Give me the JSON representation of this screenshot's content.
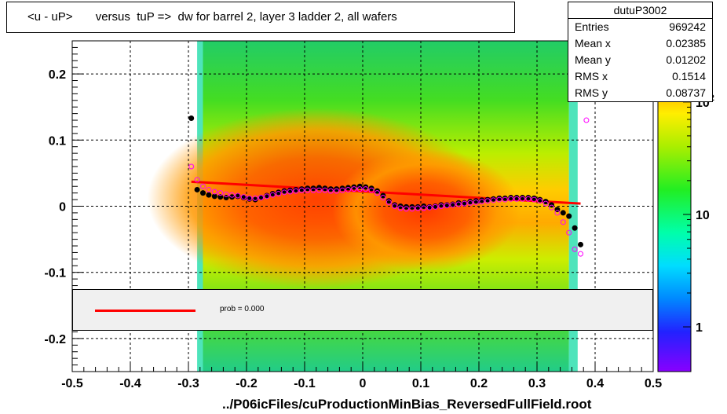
{
  "title": "<u - uP>       versus  tuP =>  dw for barrel 2, layer 3 ladder 2, all wafers",
  "footer": "../P06icFiles/cuProductionMinBias_ReversedFullField.root",
  "stats": {
    "name": "dutuP3002",
    "rows": [
      {
        "label": "Entries",
        "value": "969242"
      },
      {
        "label": "Mean x",
        "value": "0.02385"
      },
      {
        "label": "Mean y",
        "value": "0.01202"
      },
      {
        "label": "RMS x",
        "value": "0.1514"
      },
      {
        "label": "RMS y",
        "value": "0.08737"
      }
    ]
  },
  "legend": {
    "text": "prob = 0.000"
  },
  "colors": {
    "fit_line": "#ff0000",
    "profile_black": "#000000",
    "profile_magenta": "#ff00ff"
  },
  "chart_data": {
    "type": "heatmap",
    "xlim": [
      -0.5,
      0.5
    ],
    "ylim": [
      -0.25,
      0.25
    ],
    "x_ticks": [
      "-0.5",
      "-0.4",
      "-0.3",
      "-0.2",
      "-0.1",
      "0",
      "0.1",
      "0.2",
      "0.3",
      "0.4",
      "0.5"
    ],
    "x_tick_values": [
      -0.5,
      -0.4,
      -0.3,
      -0.2,
      -0.1,
      0,
      0.1,
      0.2,
      0.3,
      0.4,
      0.5
    ],
    "y_ticks": [
      "-0.2",
      "-0.1",
      "0",
      "0.1",
      "0.2"
    ],
    "y_tick_values": [
      -0.2,
      -0.1,
      0,
      0.1,
      0.2
    ],
    "z_scale": "log",
    "z_ticks": [
      "1",
      "10",
      "10^2"
    ],
    "z_tick_values": [
      1,
      10,
      100
    ],
    "grid": true,
    "fit_line": {
      "x": [
        -0.295,
        0.375
      ],
      "y": [
        0.037,
        0.004
      ]
    },
    "profile_black": {
      "x": [
        -0.295,
        -0.285,
        -0.275,
        -0.265,
        -0.255,
        -0.245,
        -0.235,
        -0.225,
        -0.215,
        -0.205,
        -0.195,
        -0.185,
        -0.175,
        -0.165,
        -0.155,
        -0.145,
        -0.135,
        -0.125,
        -0.115,
        -0.105,
        -0.095,
        -0.085,
        -0.075,
        -0.065,
        -0.055,
        -0.045,
        -0.035,
        -0.025,
        -0.015,
        -0.005,
        0.005,
        0.015,
        0.025,
        0.035,
        0.045,
        0.055,
        0.065,
        0.075,
        0.085,
        0.095,
        0.105,
        0.115,
        0.125,
        0.135,
        0.145,
        0.155,
        0.165,
        0.175,
        0.185,
        0.195,
        0.205,
        0.215,
        0.225,
        0.235,
        0.245,
        0.255,
        0.265,
        0.275,
        0.285,
        0.295,
        0.305,
        0.315,
        0.325,
        0.335,
        0.345,
        0.355,
        0.365,
        0.375
      ],
      "y": [
        0.133,
        0.025,
        0.02,
        0.017,
        0.015,
        0.014,
        0.013,
        0.014,
        0.015,
        0.013,
        0.011,
        0.01,
        0.013,
        0.016,
        0.019,
        0.021,
        0.023,
        0.024,
        0.025,
        0.026,
        0.027,
        0.027,
        0.028,
        0.027,
        0.026,
        0.026,
        0.027,
        0.028,
        0.029,
        0.03,
        0.029,
        0.027,
        0.023,
        0.016,
        0.008,
        0.002,
        0.0,
        -0.001,
        -0.001,
        -0.001,
        0.0,
        -0.001,
        0.0,
        0.002,
        0.002,
        0.003,
        0.005,
        0.005,
        0.007,
        0.008,
        0.009,
        0.01,
        0.011,
        0.012,
        0.012,
        0.013,
        0.013,
        0.013,
        0.013,
        0.012,
        0.01,
        0.007,
        0.002,
        -0.005,
        -0.01,
        -0.015,
        -0.033,
        -0.058
      ]
    },
    "profile_magenta": {
      "x": [
        -0.295,
        -0.285,
        -0.275,
        -0.265,
        -0.255,
        -0.245,
        -0.235,
        -0.225,
        -0.215,
        -0.205,
        -0.195,
        -0.185,
        -0.175,
        -0.165,
        -0.155,
        -0.145,
        -0.135,
        -0.125,
        -0.115,
        -0.105,
        -0.095,
        -0.085,
        -0.075,
        -0.065,
        -0.055,
        -0.045,
        -0.035,
        -0.025,
        -0.015,
        -0.005,
        0.005,
        0.015,
        0.025,
        0.035,
        0.045,
        0.055,
        0.065,
        0.075,
        0.085,
        0.095,
        0.105,
        0.115,
        0.125,
        0.135,
        0.145,
        0.155,
        0.165,
        0.175,
        0.185,
        0.195,
        0.205,
        0.215,
        0.225,
        0.235,
        0.245,
        0.255,
        0.265,
        0.275,
        0.285,
        0.295,
        0.305,
        0.315,
        0.325,
        0.335,
        0.345,
        0.355,
        0.365,
        0.375,
        0.385
      ],
      "y": [
        0.06,
        0.04,
        0.03,
        0.025,
        0.022,
        0.02,
        0.018,
        0.017,
        0.016,
        0.014,
        0.012,
        0.012,
        0.013,
        0.015,
        0.017,
        0.019,
        0.021,
        0.022,
        0.023,
        0.024,
        0.024,
        0.024,
        0.024,
        0.024,
        0.023,
        0.023,
        0.024,
        0.025,
        0.026,
        0.026,
        0.026,
        0.024,
        0.02,
        0.013,
        0.006,
        0.0,
        -0.003,
        -0.004,
        -0.004,
        -0.003,
        -0.003,
        -0.002,
        -0.001,
        0.0,
        0.001,
        0.002,
        0.003,
        0.004,
        0.005,
        0.006,
        0.007,
        0.008,
        0.009,
        0.01,
        0.01,
        0.011,
        0.011,
        0.011,
        0.011,
        0.01,
        0.008,
        0.004,
        -0.002,
        -0.01,
        -0.024,
        -0.04,
        -0.065,
        -0.072,
        0.13
      ]
    }
  }
}
